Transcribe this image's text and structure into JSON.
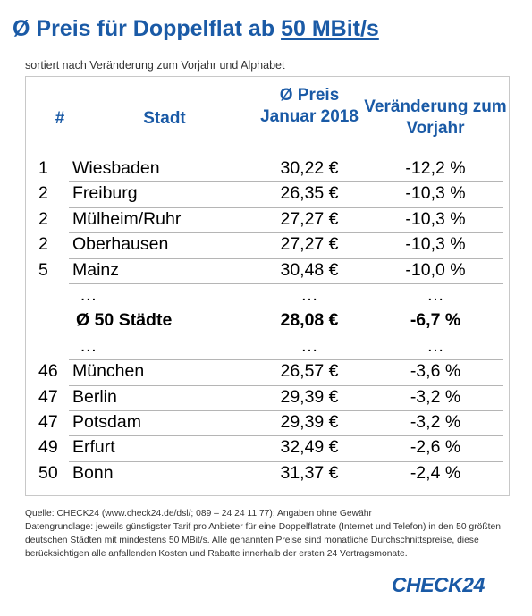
{
  "title": {
    "prefix": "Ø Preis für Doppelflat ab ",
    "highlight": "50 MBit/s"
  },
  "subtitle": "sortiert nach Veränderung zum Vorjahr und Alphabet",
  "table": {
    "headers": {
      "num": "#",
      "city": "Stadt",
      "price": "Ø Preis Januar 2018",
      "change": "Veränderung zum Vorjahr"
    },
    "rows": [
      {
        "num": "1",
        "city": "Wiesbaden",
        "price": "30,22 €",
        "change": "-12,2 %"
      },
      {
        "num": "2",
        "city": "Freiburg",
        "price": "26,35 €",
        "change": "-10,3 %"
      },
      {
        "num": "2",
        "city": "Mülheim/Ruhr",
        "price": "27,27 €",
        "change": "-10,3 %"
      },
      {
        "num": "2",
        "city": "Oberhausen",
        "price": "27,27 €",
        "change": "-10,3 %"
      },
      {
        "num": "5",
        "city": "Mainz",
        "price": "30,48 €",
        "change": "-10,0 %"
      },
      {
        "num": "",
        "city": "…",
        "price": "…",
        "change": "…"
      },
      {
        "num": "",
        "city": "Ø 50 Städte",
        "price": "28,08 €",
        "change": "-6,7 %"
      },
      {
        "num": "",
        "city": "…",
        "price": "…",
        "change": "…"
      },
      {
        "num": "46",
        "city": "München",
        "price": "26,57 €",
        "change": "-3,6 %"
      },
      {
        "num": "47",
        "city": "Berlin",
        "price": "29,39 €",
        "change": "-3,2 %"
      },
      {
        "num": "47",
        "city": "Potsdam",
        "price": "29,39 €",
        "change": "-3,2 %"
      },
      {
        "num": "49",
        "city": "Erfurt",
        "price": "32,49 €",
        "change": "-2,6 %"
      },
      {
        "num": "50",
        "city": "Bonn",
        "price": "31,37 €",
        "change": "-2,4 %"
      }
    ]
  },
  "footer": {
    "source": "Quelle: CHECK24 (www.check24.de/dsl/; 089 – 24 24 11 77); Angaben ohne Gewähr",
    "basis": "Datengrundlage: jeweils günstigster Tarif pro Anbieter für eine Doppelflatrate (Internet und Telefon) in den 50 größten deutschen Städten mit mindestens 50 MBit/s. Alle genannten Preise sind monatliche Durchschnittspreise, diese berücksichtigen alle anfallenden Kosten und Rabatte innerhalb der ersten 24 Vertragsmonate."
  },
  "logo": "CHECK24",
  "colors": {
    "accent": "#1a5aa6"
  }
}
